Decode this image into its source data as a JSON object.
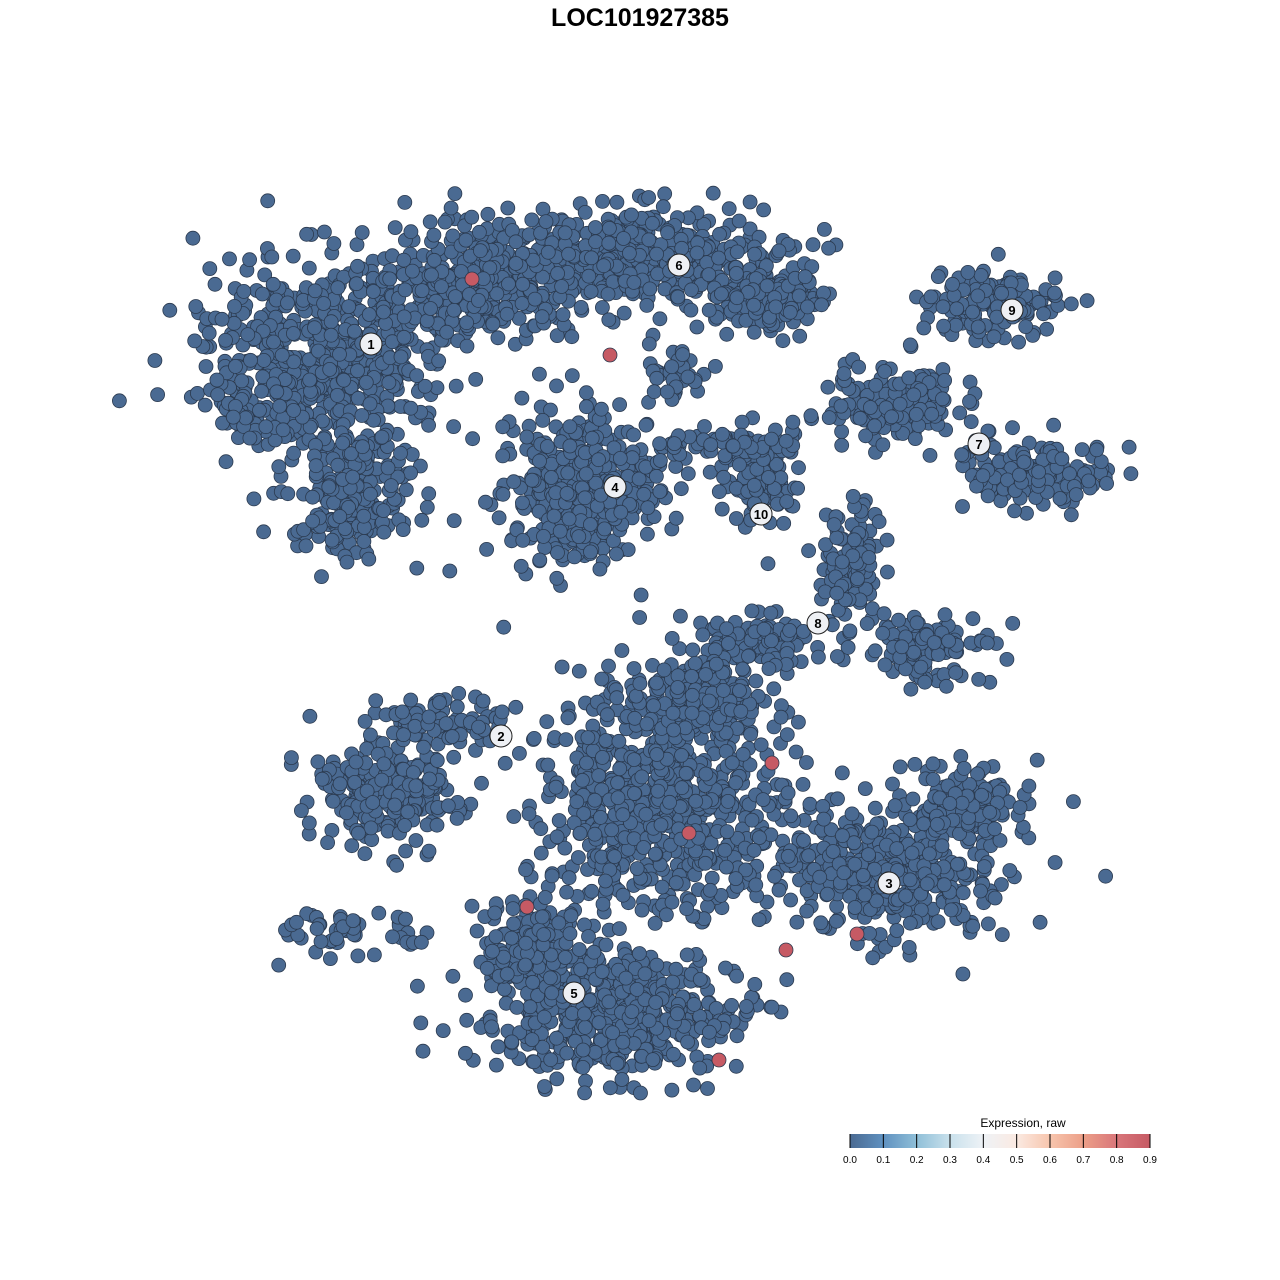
{
  "chart_data": {
    "type": "scatter",
    "title": "LOC101927385",
    "xlabel": "",
    "ylabel": "",
    "axes_visible": false,
    "grid": false,
    "cluster_labels": [
      "1",
      "2",
      "3",
      "4",
      "5",
      "6",
      "7",
      "8",
      "9",
      "10"
    ],
    "point_color_low": "#4a6a92",
    "point_color_high": "#c65a64",
    "point_stroke": "#2b3a4f",
    "highlighted_points_expression": 0.9,
    "highlighted_points_count": 9,
    "legend": {
      "title": "Expression, raw",
      "placement": "bottom-right",
      "range": [
        0.0,
        0.9
      ],
      "ticks": [
        "0.0",
        "0.1",
        "0.2",
        "0.3",
        "0.4",
        "0.5",
        "0.6",
        "0.7",
        "0.8",
        "0.9"
      ],
      "colors": [
        "#4a6a92",
        "#5f91c0",
        "#8fbfd8",
        "#c9e1ec",
        "#eef2f6",
        "#fbeae2",
        "#f7c5ad",
        "#ec9f88",
        "#d9767a",
        "#c65a64"
      ]
    }
  }
}
